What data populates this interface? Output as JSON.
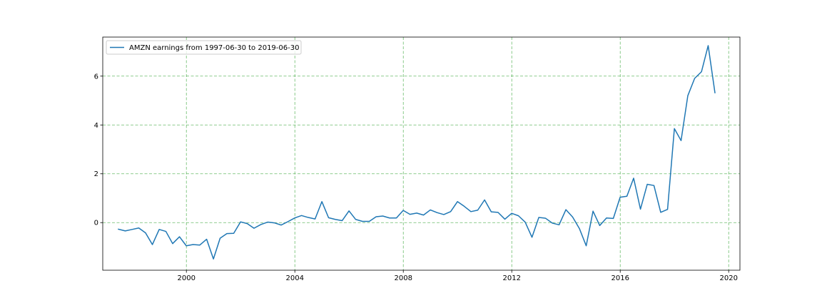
{
  "chart_data": {
    "type": "line",
    "title": "",
    "xlabel": "",
    "ylabel": "",
    "xlim": [
      "1996-12-01",
      "2020-06-01"
    ],
    "ylim": [
      -1.95,
      7.6
    ],
    "x_ticks": [
      "2000",
      "2004",
      "2008",
      "2012",
      "2016",
      "2020"
    ],
    "y_ticks": [
      "0",
      "2",
      "4",
      "6"
    ],
    "grid": true,
    "grid_color": "#2ca02c",
    "legend_position": "upper-left",
    "series": [
      {
        "name": "AMZN earnings from 1997-06-30 to 2019-06-30",
        "color": "#1f77b4",
        "points": [
          [
            "1997-06-30",
            -0.27
          ],
          [
            "1997-09-30",
            -0.34
          ],
          [
            "1997-12-31",
            -0.28
          ],
          [
            "1998-03-31",
            -0.22
          ],
          [
            "1998-06-30",
            -0.42
          ],
          [
            "1998-09-30",
            -0.9
          ],
          [
            "1998-12-31",
            -0.28
          ],
          [
            "1999-03-31",
            -0.36
          ],
          [
            "1999-06-30",
            -0.86
          ],
          [
            "1999-09-30",
            -0.58
          ],
          [
            "1999-12-31",
            -0.95
          ],
          [
            "2000-03-31",
            -0.9
          ],
          [
            "2000-06-30",
            -0.92
          ],
          [
            "2000-09-30",
            -0.68
          ],
          [
            "2000-12-31",
            -1.49
          ],
          [
            "2001-03-31",
            -0.64
          ],
          [
            "2001-06-30",
            -0.45
          ],
          [
            "2001-09-30",
            -0.44
          ],
          [
            "2001-12-31",
            0.03
          ],
          [
            "2002-03-31",
            -0.04
          ],
          [
            "2002-06-30",
            -0.23
          ],
          [
            "2002-09-30",
            -0.08
          ],
          [
            "2002-12-31",
            0.02
          ],
          [
            "2003-03-31",
            -0.01
          ],
          [
            "2003-06-30",
            -0.1
          ],
          [
            "2003-09-30",
            0.04
          ],
          [
            "2003-12-31",
            0.19
          ],
          [
            "2004-03-31",
            0.29
          ],
          [
            "2004-06-30",
            0.21
          ],
          [
            "2004-09-30",
            0.15
          ],
          [
            "2004-12-31",
            0.86
          ],
          [
            "2005-03-31",
            0.2
          ],
          [
            "2005-06-30",
            0.13
          ],
          [
            "2005-09-30",
            0.08
          ],
          [
            "2005-12-31",
            0.48
          ],
          [
            "2006-03-31",
            0.13
          ],
          [
            "2006-06-30",
            0.05
          ],
          [
            "2006-09-30",
            0.05
          ],
          [
            "2006-12-31",
            0.24
          ],
          [
            "2007-03-31",
            0.27
          ],
          [
            "2007-06-30",
            0.19
          ],
          [
            "2007-09-30",
            0.19
          ],
          [
            "2007-12-31",
            0.5
          ],
          [
            "2008-03-31",
            0.34
          ],
          [
            "2008-06-30",
            0.39
          ],
          [
            "2008-09-30",
            0.31
          ],
          [
            "2008-12-31",
            0.52
          ],
          [
            "2009-03-31",
            0.41
          ],
          [
            "2009-06-30",
            0.33
          ],
          [
            "2009-09-30",
            0.45
          ],
          [
            "2009-12-31",
            0.86
          ],
          [
            "2010-03-31",
            0.67
          ],
          [
            "2010-06-30",
            0.45
          ],
          [
            "2010-09-30",
            0.51
          ],
          [
            "2010-12-31",
            0.93
          ],
          [
            "2011-03-31",
            0.44
          ],
          [
            "2011-06-30",
            0.42
          ],
          [
            "2011-09-30",
            0.14
          ],
          [
            "2011-12-31",
            0.38
          ],
          [
            "2012-03-31",
            0.28
          ],
          [
            "2012-06-30",
            0.02
          ],
          [
            "2012-09-30",
            -0.6
          ],
          [
            "2012-12-31",
            0.21
          ],
          [
            "2013-03-31",
            0.18
          ],
          [
            "2013-06-30",
            -0.02
          ],
          [
            "2013-09-30",
            -0.09
          ],
          [
            "2013-12-31",
            0.53
          ],
          [
            "2014-03-31",
            0.23
          ],
          [
            "2014-06-30",
            -0.24
          ],
          [
            "2014-09-30",
            -0.95
          ],
          [
            "2014-12-31",
            0.47
          ],
          [
            "2015-03-31",
            -0.12
          ],
          [
            "2015-06-30",
            0.19
          ],
          [
            "2015-09-30",
            0.17
          ],
          [
            "2015-12-31",
            1.04
          ],
          [
            "2016-03-31",
            1.08
          ],
          [
            "2016-06-30",
            1.82
          ],
          [
            "2016-09-30",
            0.55
          ],
          [
            "2016-12-31",
            1.57
          ],
          [
            "2017-03-31",
            1.52
          ],
          [
            "2017-06-30",
            0.42
          ],
          [
            "2017-09-30",
            0.54
          ],
          [
            "2017-12-31",
            3.85
          ],
          [
            "2018-03-31",
            3.36
          ],
          [
            "2018-06-30",
            5.2
          ],
          [
            "2018-09-30",
            5.91
          ],
          [
            "2018-12-31",
            6.18
          ],
          [
            "2019-03-31",
            7.25
          ],
          [
            "2019-06-30",
            5.32
          ]
        ]
      }
    ]
  }
}
